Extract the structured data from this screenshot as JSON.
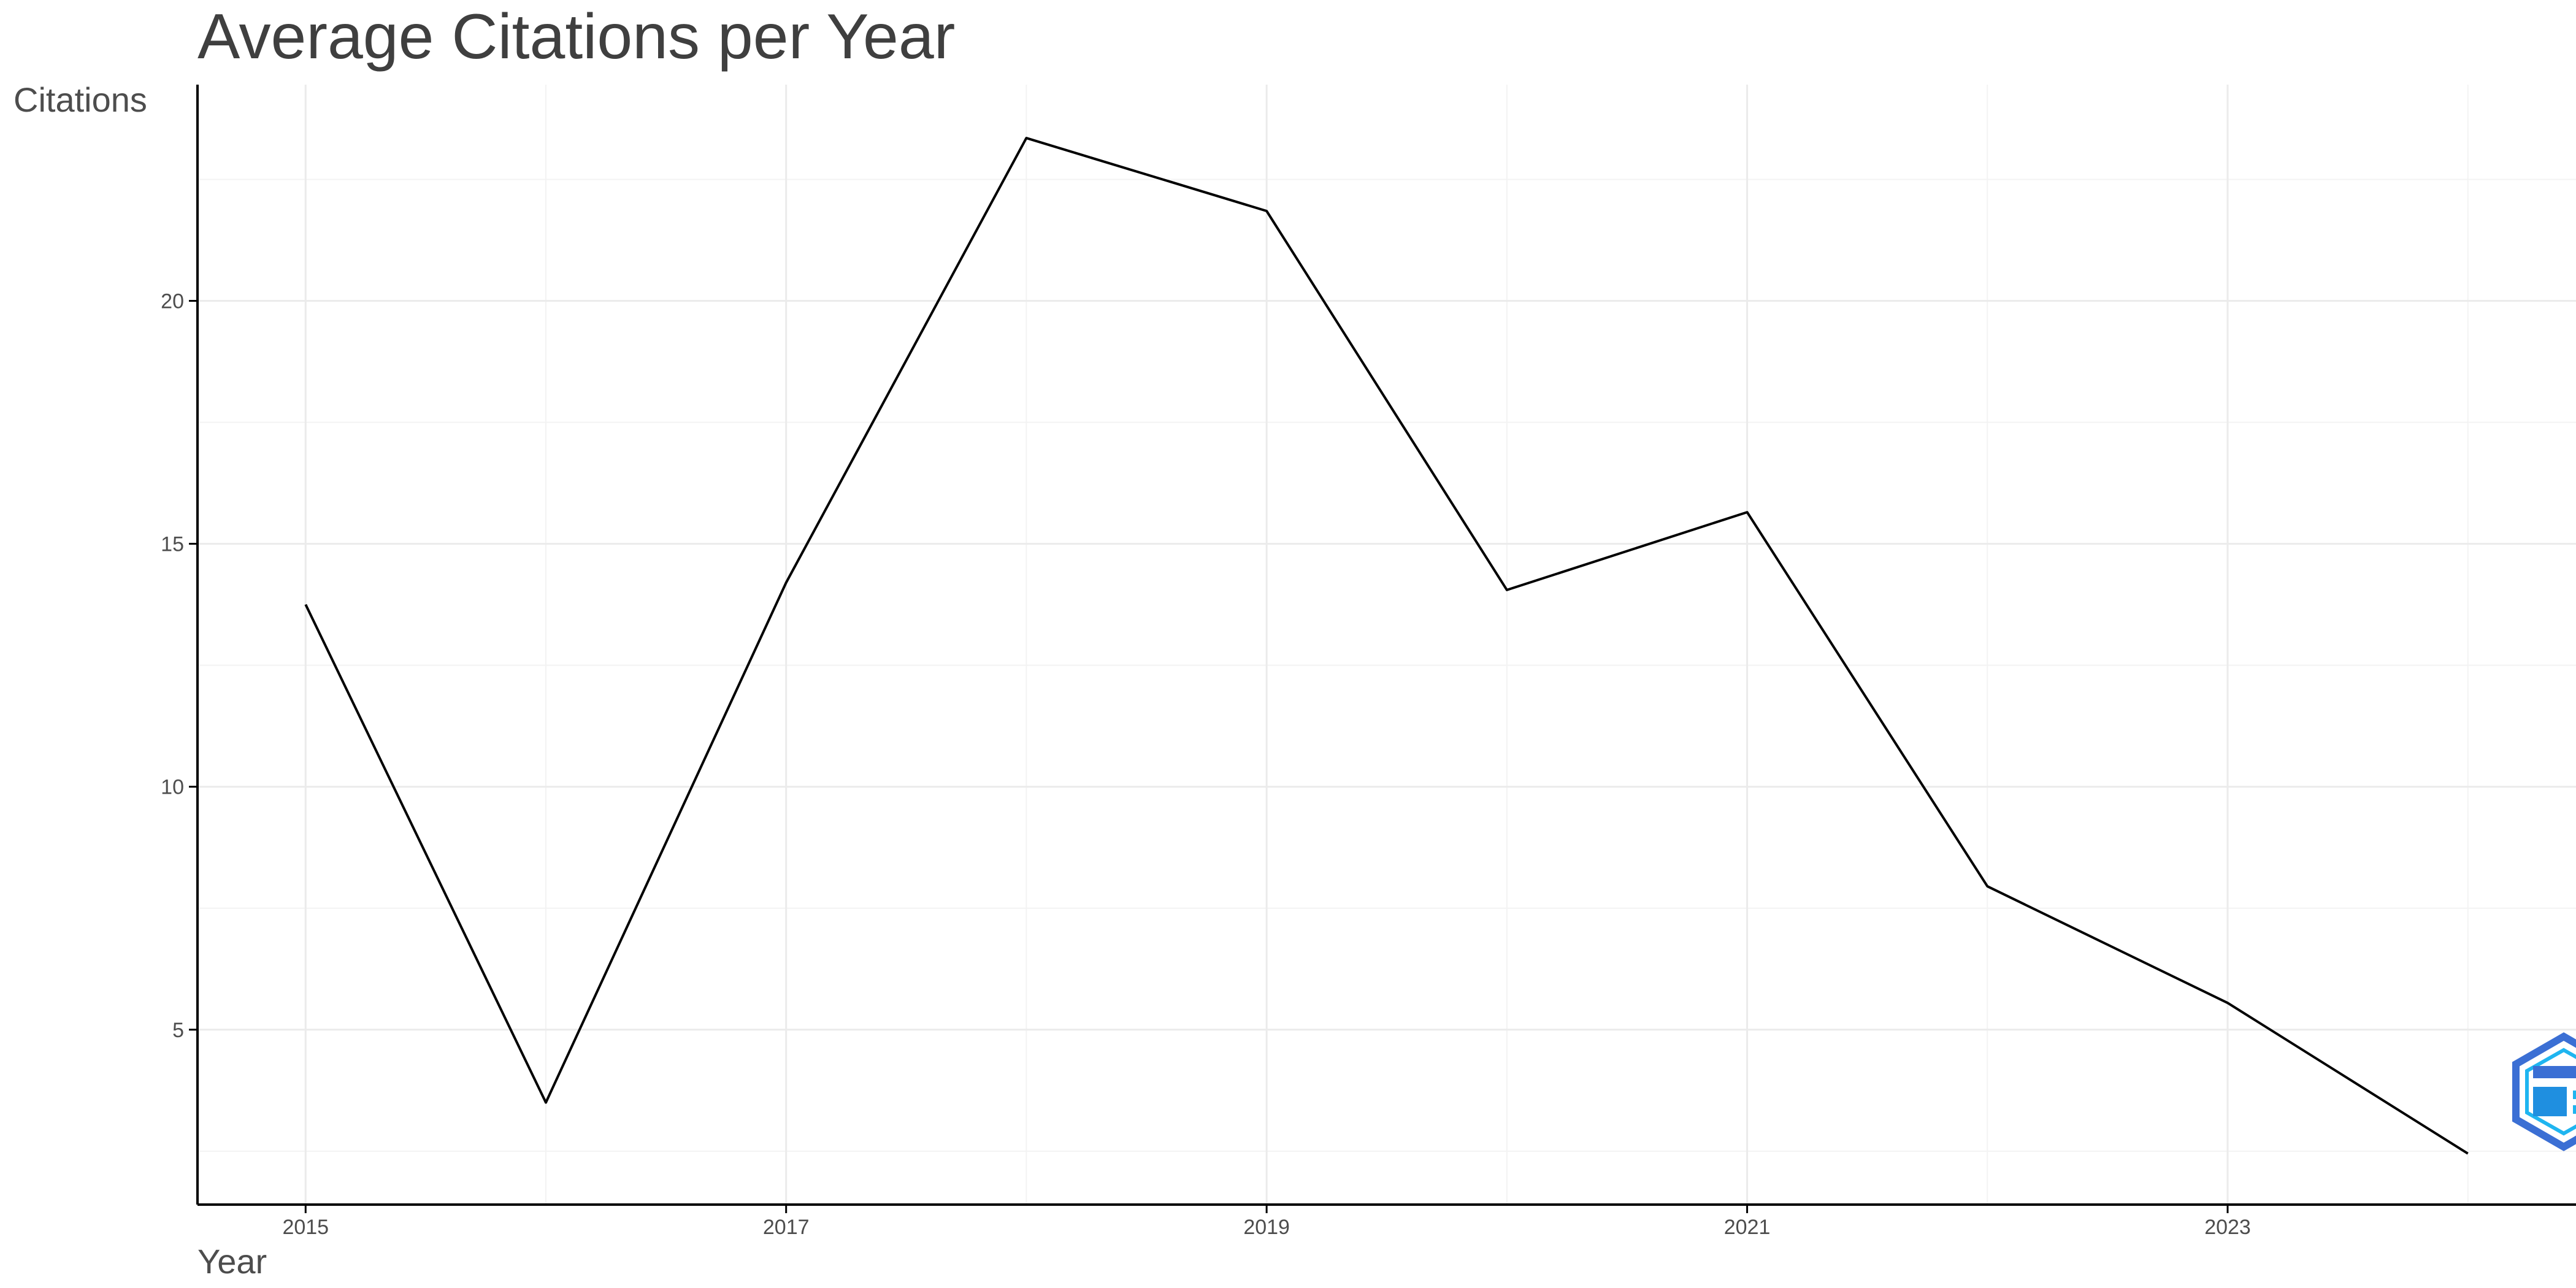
{
  "chart_data": {
    "type": "line",
    "title": "Average Citations per Year",
    "xlabel": "Year",
    "ylabel": "Citations",
    "x": [
      2015,
      2016,
      2017,
      2018,
      2019,
      2020,
      2021,
      2022,
      2023,
      2024
    ],
    "values": [
      13.75,
      3.5,
      14.2,
      23.35,
      21.85,
      14.05,
      15.65,
      7.95,
      5.55,
      2.45
    ],
    "xlim": [
      2014.55,
      2024.45
    ],
    "ylim": [
      1.4,
      24.45
    ],
    "x_ticks": [
      2015,
      2017,
      2019,
      2021,
      2023
    ],
    "y_ticks": [
      5,
      10,
      15,
      20
    ],
    "grid": true,
    "line_color": "#000000",
    "grid_color": "#ebebeb"
  },
  "logo": {
    "icon": "bibliometrix-logo-icon",
    "colors": [
      "#3b6fd4",
      "#1fb5f0"
    ]
  }
}
